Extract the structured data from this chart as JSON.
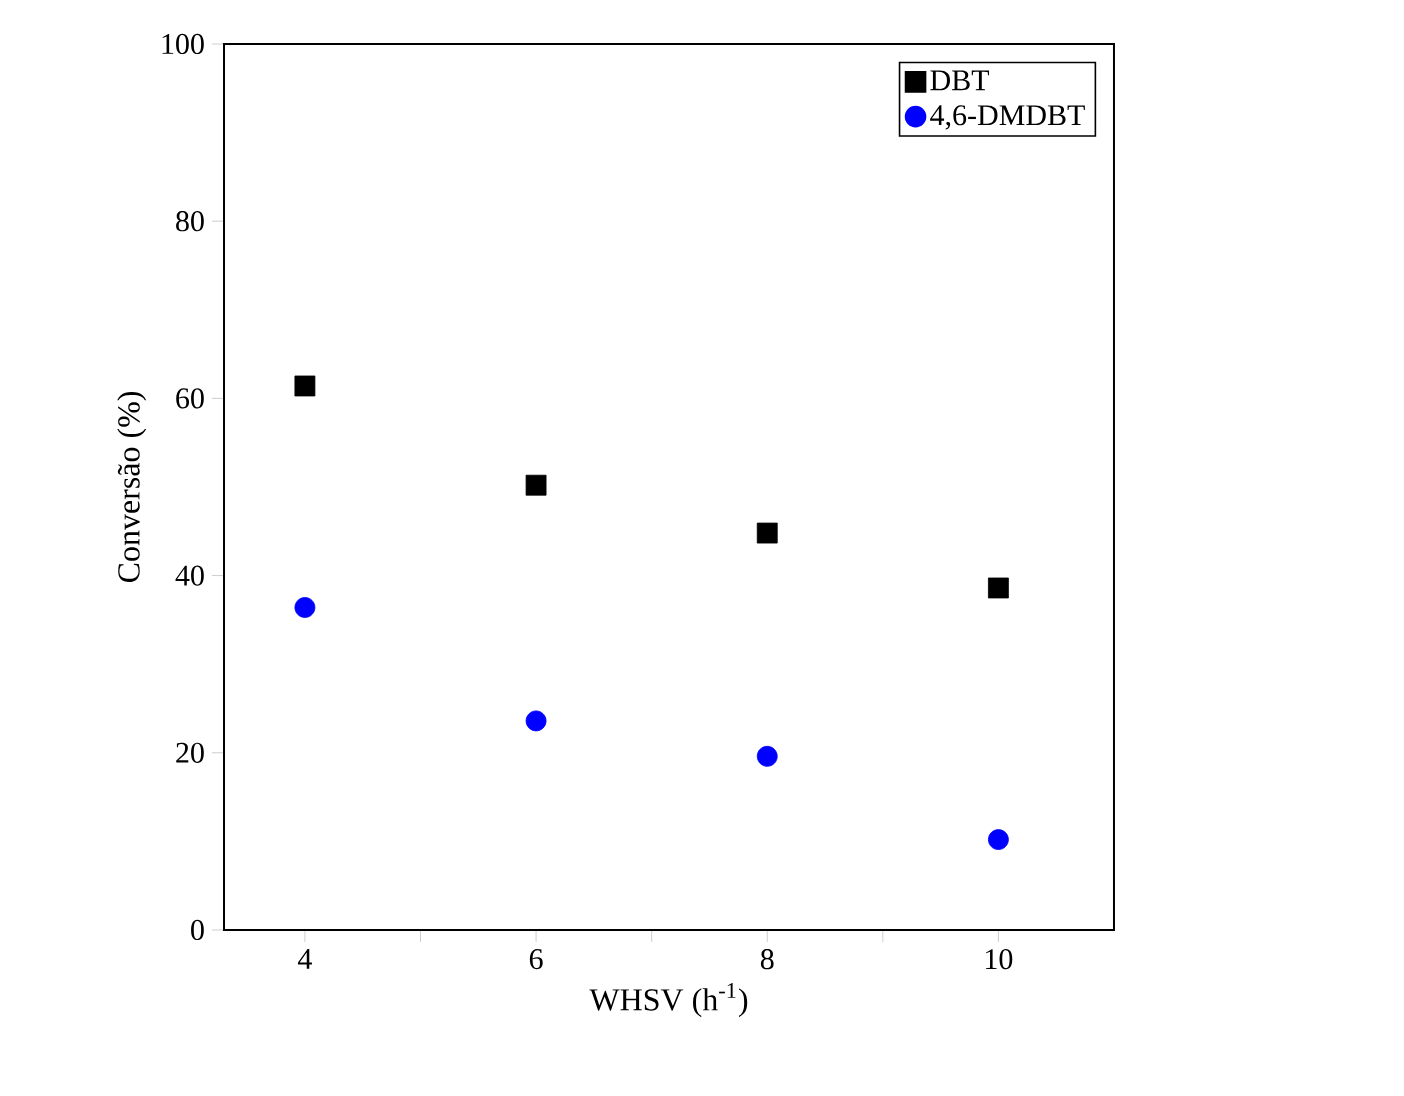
{
  "chart_data": {
    "type": "scatter",
    "xlabel": "WHSV (h$^{-1}$)",
    "ylabel": "Conversão (%)",
    "x": [
      4,
      6,
      8,
      10
    ],
    "xlim": [
      3.3,
      11
    ],
    "xticks": [
      4,
      {
        "value": 5,
        "label": null
      },
      6,
      {
        "value": 7,
        "label": null
      },
      8,
      {
        "value": 9,
        "label": null
      },
      10
    ],
    "ylim": [
      0,
      100
    ],
    "yticks": [
      0,
      20,
      40,
      60,
      80,
      100
    ],
    "legend": "top right",
    "grid": false,
    "series": [
      {
        "name": "DBT",
        "color": "#000000",
        "marker": "square",
        "values": [
          61.4,
          50.2,
          44.8,
          38.6
        ]
      },
      {
        "name": "4,6-DMDBT",
        "color": "#0000ff",
        "marker": "circle",
        "values": [
          36.4,
          23.6,
          19.6,
          10.2
        ]
      }
    ]
  }
}
